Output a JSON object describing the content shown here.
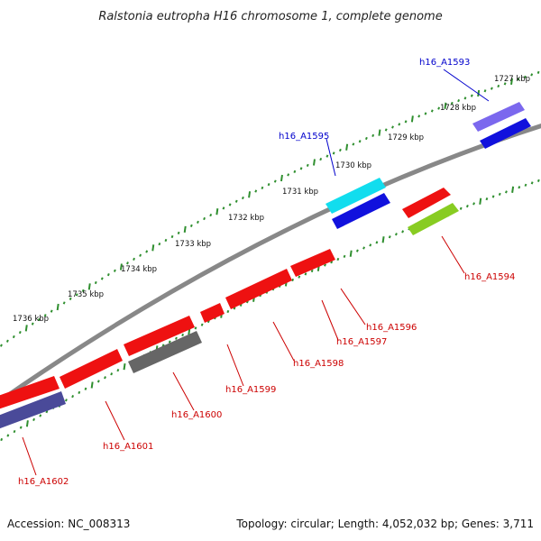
{
  "title": "Ralstonia eutropha H16 chromosome 1, complete genome",
  "footer": {
    "accession": "Accession: NC_008313",
    "summary": "Topology: circular; Length: 4,052,032 bp; Genes: 3,711"
  },
  "colors": {
    "backbone": "#888888",
    "tick": "#2f8f2f",
    "label_forward": "#0000cc",
    "label_reverse": "#cc0000",
    "red": "#ee1111",
    "blue": "#1111dd",
    "cyan": "#11ddee",
    "slate": "#6a5acd",
    "grey": "#666666",
    "green": "#88cc22",
    "navy": "#4a4a99"
  },
  "kbp_labels": [
    "1727 kbp",
    "1728 kbp",
    "1729 kbp",
    "1730 kbp",
    "1731 kbp",
    "1732 kbp",
    "1733 kbp",
    "1734 kbp",
    "1735 kbp",
    "1736 kbp"
  ],
  "gene_labels": {
    "h16_A1593": "h16_A1593",
    "h16_A1594": "h16_A1594",
    "h16_A1595": "h16_A1595",
    "h16_A1596": "h16_A1596",
    "h16_A1597": "h16_A1597",
    "h16_A1598": "h16_A1598",
    "h16_A1599": "h16_A1599",
    "h16_A1600": "h16_A1600",
    "h16_A1601": "h16_A1601",
    "h16_A1602": "h16_A1602"
  }
}
